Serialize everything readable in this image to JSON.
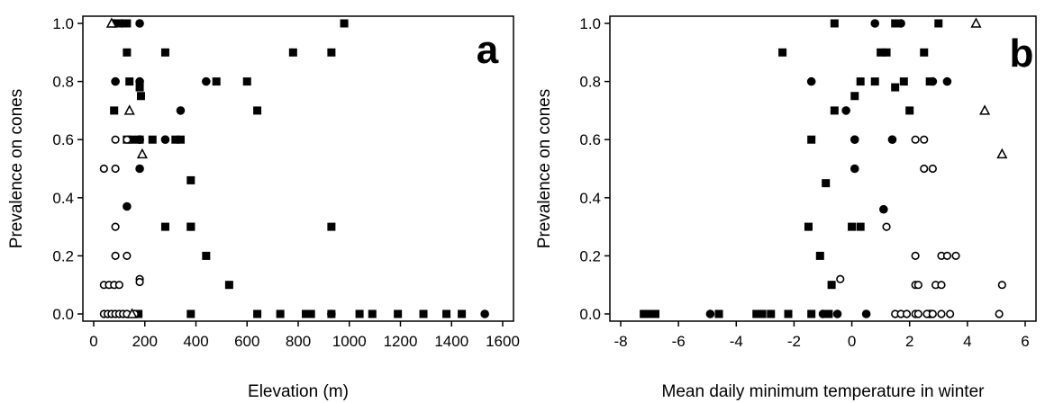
{
  "chart_data": [
    {
      "type": "scatter",
      "panel_label": "a",
      "xlabel": "Elevation (m)",
      "ylabel": "Prevalence on cones",
      "xlim": [
        0,
        1600
      ],
      "ylim": [
        0,
        1.0
      ],
      "xticks": [
        0,
        200,
        400,
        600,
        800,
        1000,
        1200,
        1400,
        1600
      ],
      "xtick_labels": [
        "0",
        "200",
        "400",
        "600",
        "800",
        "1000",
        "1200",
        "1400",
        "1600"
      ],
      "yticks": [
        0,
        0.2,
        0.4,
        0.6,
        0.8,
        1.0
      ],
      "ytick_labels": [
        "0.0",
        "0.2",
        "0.4",
        "0.6",
        "0.8",
        "1.0"
      ],
      "series": [
        {
          "marker": "square-filled",
          "x": [
            100,
            130,
            130,
            140,
            180,
            185,
            280,
            380,
            480,
            600,
            780,
            930,
            980,
            130,
            180,
            230,
            320,
            340,
            380,
            280,
            380,
            440,
            530,
            930,
            640,
            380,
            640,
            730,
            830,
            850,
            930,
            1040,
            1090,
            1190,
            1290,
            1380,
            1440,
            80,
            150,
            175
          ],
          "y": [
            1.0,
            1.0,
            0.9,
            0.8,
            0.78,
            0.75,
            0.9,
            0.46,
            0.8,
            0.8,
            0.9,
            0.9,
            1.0,
            0.6,
            0.6,
            0.6,
            0.6,
            0.6,
            0.3,
            0.3,
            0.3,
            0.2,
            0.1,
            0.3,
            0.7,
            0.0,
            0.0,
            0.0,
            0.0,
            0.0,
            0.0,
            0.0,
            0.0,
            0.0,
            0.0,
            0.0,
            0.0,
            0.7,
            0.6,
            0.0
          ]
        },
        {
          "marker": "circle-filled",
          "x": [
            180,
            110,
            85,
            180,
            180,
            440,
            340,
            180,
            280,
            130,
            180,
            930,
            1530,
            80
          ],
          "y": [
            1.0,
            1.0,
            0.8,
            0.8,
            0.6,
            0.8,
            0.7,
            0.6,
            0.6,
            0.37,
            0.5,
            0.0,
            0.0,
            1.0
          ]
        },
        {
          "marker": "circle-open",
          "x": [
            85,
            130,
            40,
            85,
            85,
            85,
            130,
            40,
            60,
            80,
            100,
            180,
            180,
            40,
            55,
            70,
            85,
            100,
            115,
            130,
            160
          ],
          "y": [
            0.6,
            0.6,
            0.5,
            0.5,
            0.3,
            0.2,
            0.2,
            0.1,
            0.1,
            0.1,
            0.1,
            0.12,
            0.11,
            0.0,
            0.0,
            0.0,
            0.0,
            0.0,
            0.0,
            0.0,
            0.0
          ]
        },
        {
          "marker": "triangle-open",
          "x": [
            70,
            140,
            190,
            150
          ],
          "y": [
            1.0,
            0.7,
            0.55,
            0.0
          ]
        }
      ]
    },
    {
      "type": "scatter",
      "panel_label": "b",
      "xlabel": "Mean daily minimum temperature in winter",
      "ylabel": "Prevalence on cones",
      "xlim": [
        -8,
        6
      ],
      "ylim": [
        0,
        1.0
      ],
      "xticks": [
        -8,
        -6,
        -4,
        -2,
        0,
        2,
        4,
        6
      ],
      "xtick_labels": [
        "-8",
        "-6",
        "-4",
        "-2",
        "0",
        "2",
        "4",
        "6"
      ],
      "yticks": [
        0,
        0.2,
        0.4,
        0.6,
        0.8,
        1.0
      ],
      "ytick_labels": [
        "0.0",
        "0.2",
        "0.4",
        "0.6",
        "0.8",
        "1.0"
      ],
      "series": [
        {
          "marker": "square-filled",
          "x": [
            -0.6,
            1.5,
            3.0,
            -2.4,
            1.0,
            1.2,
            2.5,
            0.3,
            0.8,
            1.8,
            2.7,
            0.1,
            1.5,
            2.0,
            -0.6,
            -1.4,
            -0.9,
            -1.5,
            -1.1,
            0.0,
            0.3,
            -0.7,
            -7.2,
            -7.0,
            -6.8,
            -4.6,
            -3.3,
            -3.1,
            -2.8,
            -2.2,
            -1.4,
            -0.8,
            2.7
          ],
          "y": [
            1.0,
            1.0,
            1.0,
            0.9,
            0.9,
            0.9,
            0.9,
            0.8,
            0.8,
            0.8,
            0.8,
            0.75,
            0.78,
            0.7,
            0.7,
            0.6,
            0.45,
            0.3,
            0.2,
            0.3,
            0.3,
            0.1,
            0.0,
            0.0,
            0.0,
            0.0,
            0.0,
            0.0,
            0.0,
            0.0,
            0.0,
            0.0,
            0.0
          ]
        },
        {
          "marker": "circle-filled",
          "x": [
            0.8,
            1.7,
            2.8,
            -1.4,
            3.3,
            -0.2,
            0.1,
            1.4,
            0.1,
            1.1,
            -4.9,
            -1.0,
            -0.5,
            0.5,
            2.7
          ],
          "y": [
            1.0,
            1.0,
            0.8,
            0.8,
            0.8,
            0.7,
            0.6,
            0.6,
            0.5,
            0.36,
            0.0,
            0.0,
            0.0,
            0.0,
            0.0
          ]
        },
        {
          "marker": "circle-open",
          "x": [
            2.2,
            2.5,
            2.5,
            2.8,
            1.2,
            2.2,
            3.1,
            3.3,
            3.6,
            2.2,
            2.3,
            2.9,
            3.1,
            5.2,
            -0.4,
            1.5,
            1.7,
            1.9,
            2.2,
            2.3,
            2.6,
            2.8,
            3.1,
            3.4,
            5.1
          ],
          "y": [
            0.6,
            0.6,
            0.5,
            0.5,
            0.3,
            0.2,
            0.2,
            0.2,
            0.2,
            0.1,
            0.1,
            0.1,
            0.1,
            0.1,
            0.12,
            0.0,
            0.0,
            0.0,
            0.0,
            0.0,
            0.0,
            0.0,
            0.0,
            0.0,
            0.0
          ]
        },
        {
          "marker": "triangle-open",
          "x": [
            4.3,
            4.6,
            5.2
          ],
          "y": [
            1.0,
            0.7,
            0.55
          ]
        }
      ]
    }
  ]
}
